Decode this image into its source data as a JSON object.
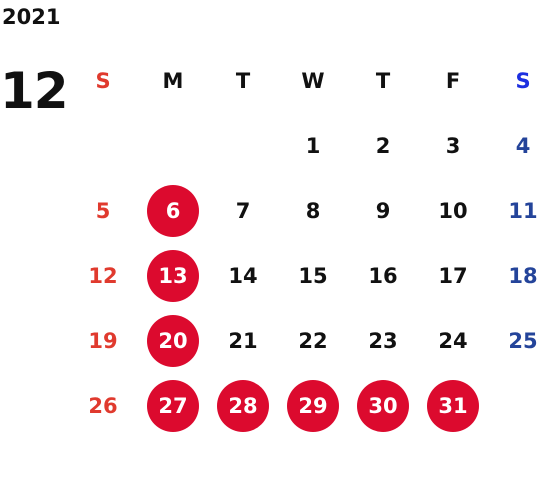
{
  "year": "2021",
  "month": "12",
  "weekdays": [
    "S",
    "M",
    "T",
    "W",
    "T",
    "F",
    "S"
  ],
  "weeks": [
    [
      "",
      "",
      "",
      "1",
      "2",
      "3",
      "4"
    ],
    [
      "5",
      "6",
      "7",
      "8",
      "9",
      "10",
      "11"
    ],
    [
      "12",
      "13",
      "14",
      "15",
      "16",
      "17",
      "18"
    ],
    [
      "19",
      "20",
      "21",
      "22",
      "23",
      "24",
      "25"
    ],
    [
      "26",
      "27",
      "28",
      "29",
      "30",
      "31",
      ""
    ]
  ],
  "highlighted_days": [
    "6",
    "13",
    "20",
    "27",
    "28",
    "29",
    "30",
    "31"
  ],
  "colors": {
    "sunday": "#e03a2e",
    "saturday": "#24449a",
    "saturday_header": "#1d2fe0",
    "highlight": "#dc0a2e",
    "text": "#111111"
  }
}
